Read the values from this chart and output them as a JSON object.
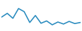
{
  "values": [
    17.0,
    19.4,
    16.2,
    22.5,
    20.5,
    13.5,
    18.0,
    13.0,
    14.5,
    12.0,
    13.8,
    12.5,
    14.2,
    12.8,
    13.5
  ],
  "line_color": "#2b8cbf",
  "bg_color": "#ffffff",
  "linewidth": 1.2
}
